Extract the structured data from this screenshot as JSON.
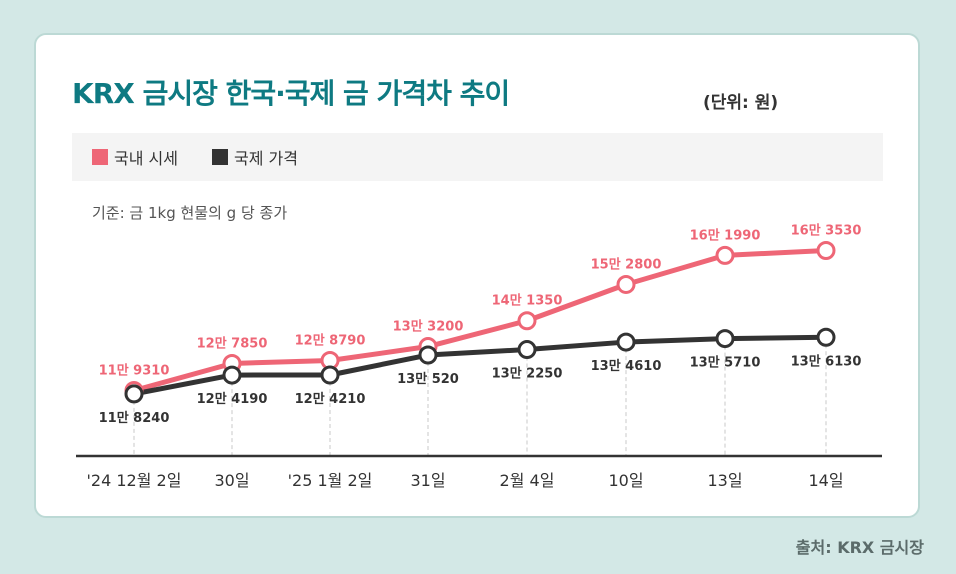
{
  "header": {
    "title": "KRX 금시장 한국·국제 금 가격차 추이",
    "unit": "(단위: 원)"
  },
  "basis_note": "기준: 금 1kg 현물의 g 당 종가",
  "source": "출처: KRX 금시장",
  "colors": {
    "domestic": "#ee6676",
    "international": "#333333",
    "title": "#0e7a82",
    "background": "#d3e8e6"
  },
  "chart_data": {
    "type": "line",
    "title": "KRX 금시장 한국·국제 금 가격차 추이",
    "subtitle": "기준: 금 1kg 현물의 g 당 종가",
    "unit": "원",
    "xlabel": "",
    "ylabel": "",
    "grid": false,
    "legend_position": "top-left",
    "categories": [
      "'24 12월 2일",
      "30일",
      "'25 1월 2일",
      "31일",
      "2월 4일",
      "10일",
      "13일",
      "14일"
    ],
    "ylim": [
      110000,
      170000
    ],
    "series": [
      {
        "name": "국내 시세",
        "color": "#ee6676",
        "values": [
          119310,
          127850,
          128790,
          133200,
          141350,
          152800,
          161990,
          163530
        ],
        "labels": [
          "11만 9310",
          "12만 7850",
          "12만 8790",
          "13만 3200",
          "14만 1350",
          "15만 2800",
          "16만 1990",
          "16만 3530"
        ]
      },
      {
        "name": "국제 가격",
        "color": "#333333",
        "values": [
          118240,
          124190,
          124210,
          130520,
          132250,
          134610,
          135710,
          136130
        ],
        "labels": [
          "11만 8240",
          "12만 4190",
          "12만 4210",
          "13만 520",
          "13만 2250",
          "13만 4610",
          "13만 5710",
          "13만 6130"
        ]
      }
    ]
  }
}
